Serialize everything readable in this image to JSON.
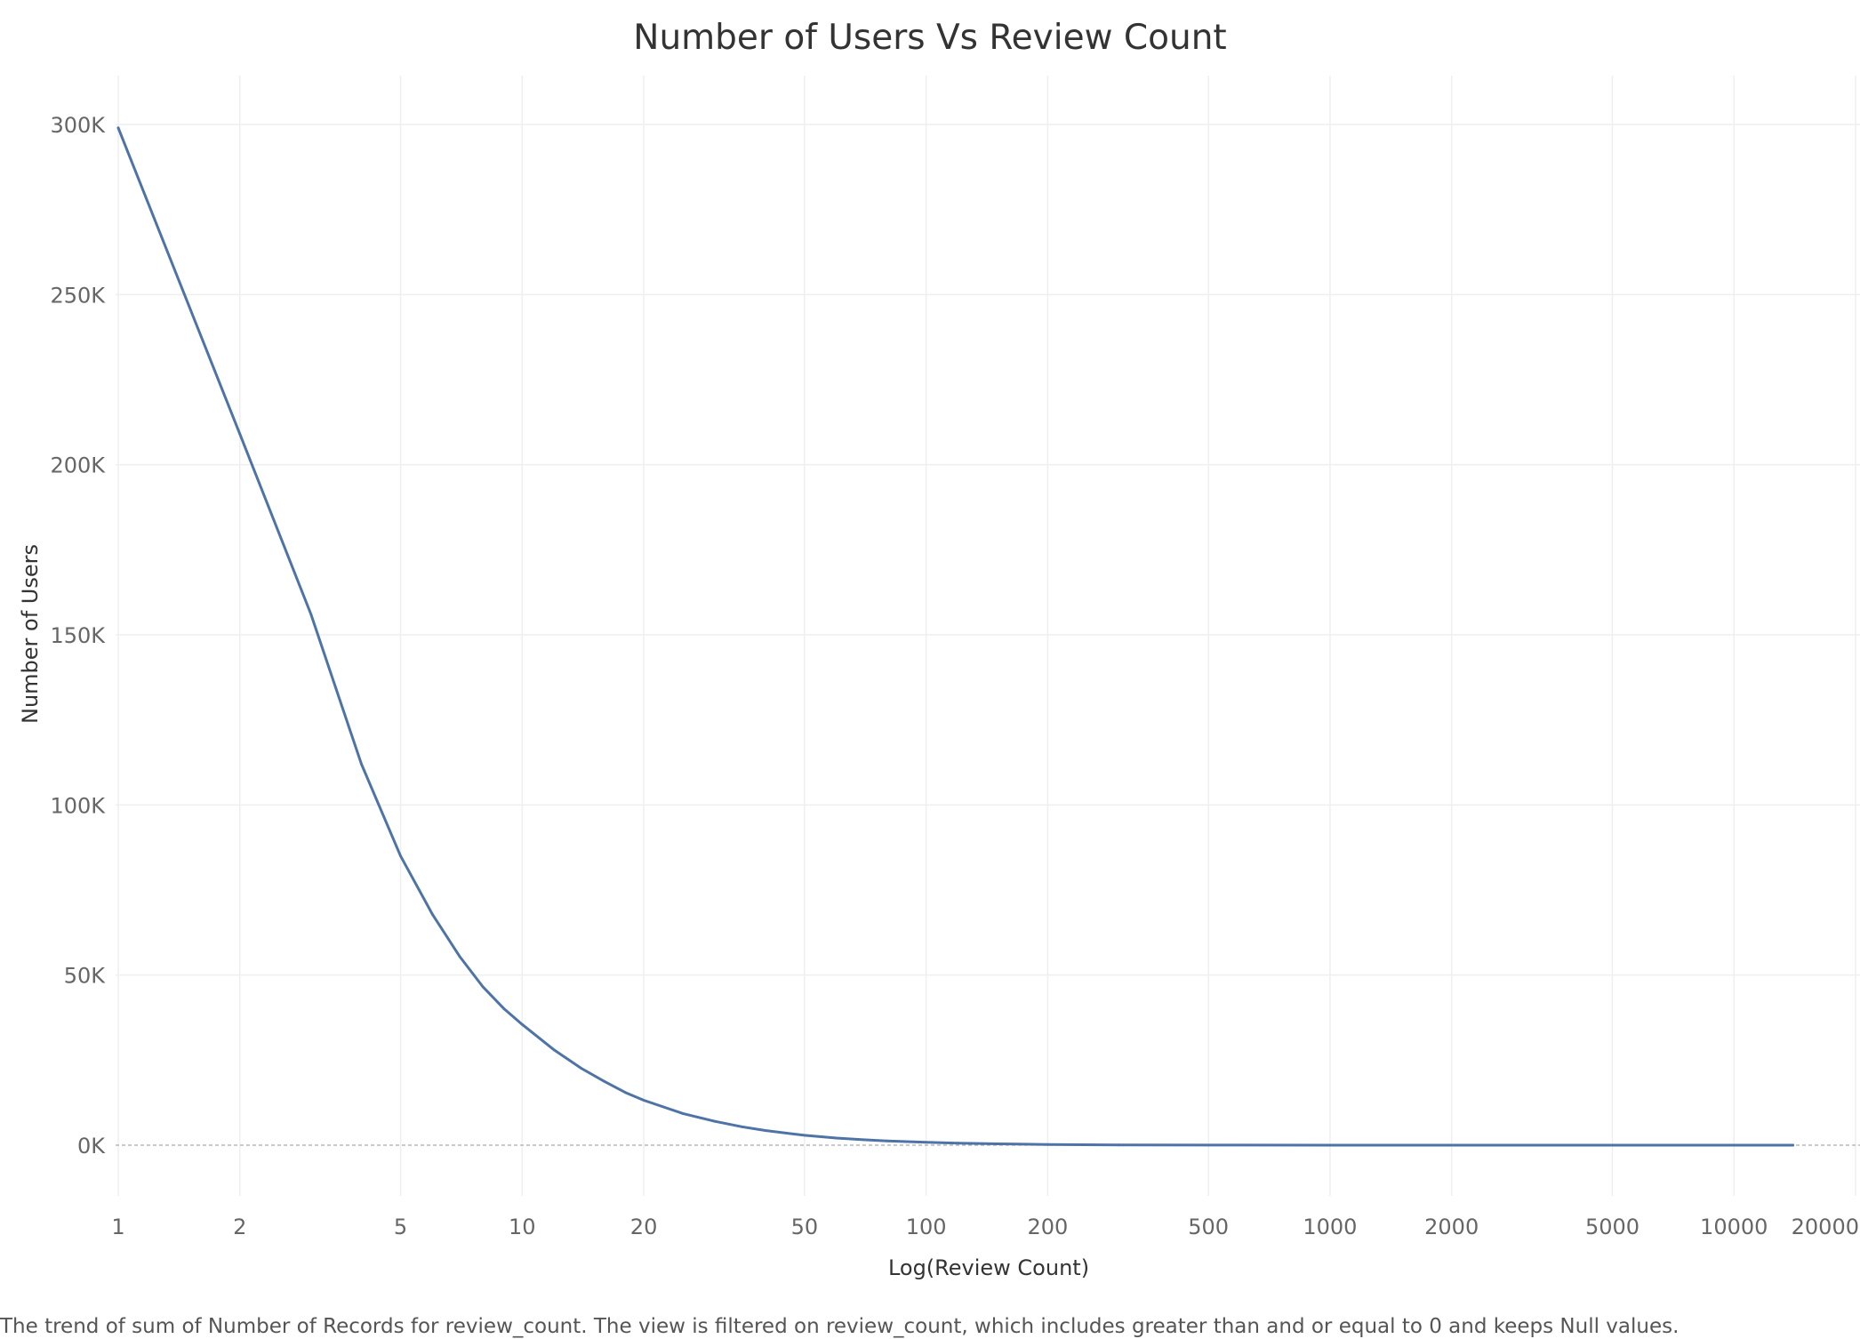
{
  "chart_data": {
    "type": "line",
    "title": "Number of Users Vs Review Count",
    "xlabel": "Log(Review Count)",
    "ylabel": "Number of Users",
    "x_scale": "log",
    "xlim": [
      1,
      20000
    ],
    "ylim": [
      0,
      300000
    ],
    "x_ticks": [
      {
        "value": 1,
        "label": "1"
      },
      {
        "value": 2,
        "label": "2"
      },
      {
        "value": 5,
        "label": "5"
      },
      {
        "value": 10,
        "label": "10"
      },
      {
        "value": 20,
        "label": "20"
      },
      {
        "value": 50,
        "label": "50"
      },
      {
        "value": 100,
        "label": "100"
      },
      {
        "value": 200,
        "label": "200"
      },
      {
        "value": 500,
        "label": "500"
      },
      {
        "value": 1000,
        "label": "1000"
      },
      {
        "value": 2000,
        "label": "2000"
      },
      {
        "value": 5000,
        "label": "5000"
      },
      {
        "value": 10000,
        "label": "10000"
      },
      {
        "value": 20000,
        "label": "20000"
      }
    ],
    "y_ticks": [
      {
        "value": 0,
        "label": "0K"
      },
      {
        "value": 50000,
        "label": "50K"
      },
      {
        "value": 100000,
        "label": "100K"
      },
      {
        "value": 150000,
        "label": "150K"
      },
      {
        "value": 200000,
        "label": "200K"
      },
      {
        "value": 250000,
        "label": "250K"
      },
      {
        "value": 300000,
        "label": "300K"
      }
    ],
    "grid": true,
    "series": [
      {
        "color": "#4e73a6",
        "x": [
          1,
          2,
          3,
          4,
          5,
          6,
          7,
          8,
          9,
          10,
          12,
          14,
          16,
          18,
          20,
          25,
          30,
          35,
          40,
          50,
          60,
          70,
          80,
          100,
          120,
          150,
          200,
          300,
          500,
          1000,
          2000,
          5000,
          10000,
          14000
        ],
        "y": [
          299000,
          209000,
          156000,
          112000,
          85000,
          67800,
          55500,
          46500,
          40200,
          35500,
          28000,
          22600,
          18700,
          15500,
          13200,
          9300,
          7000,
          5400,
          4300,
          2900,
          2100,
          1600,
          1250,
          850,
          600,
          400,
          220,
          90,
          30,
          8,
          3,
          1,
          0,
          0
        ]
      }
    ],
    "caption": "The trend of sum of Number of Records for review_count. The view is filtered on review_count, which includes greater than and or equal to 0 and keeps Null values."
  }
}
